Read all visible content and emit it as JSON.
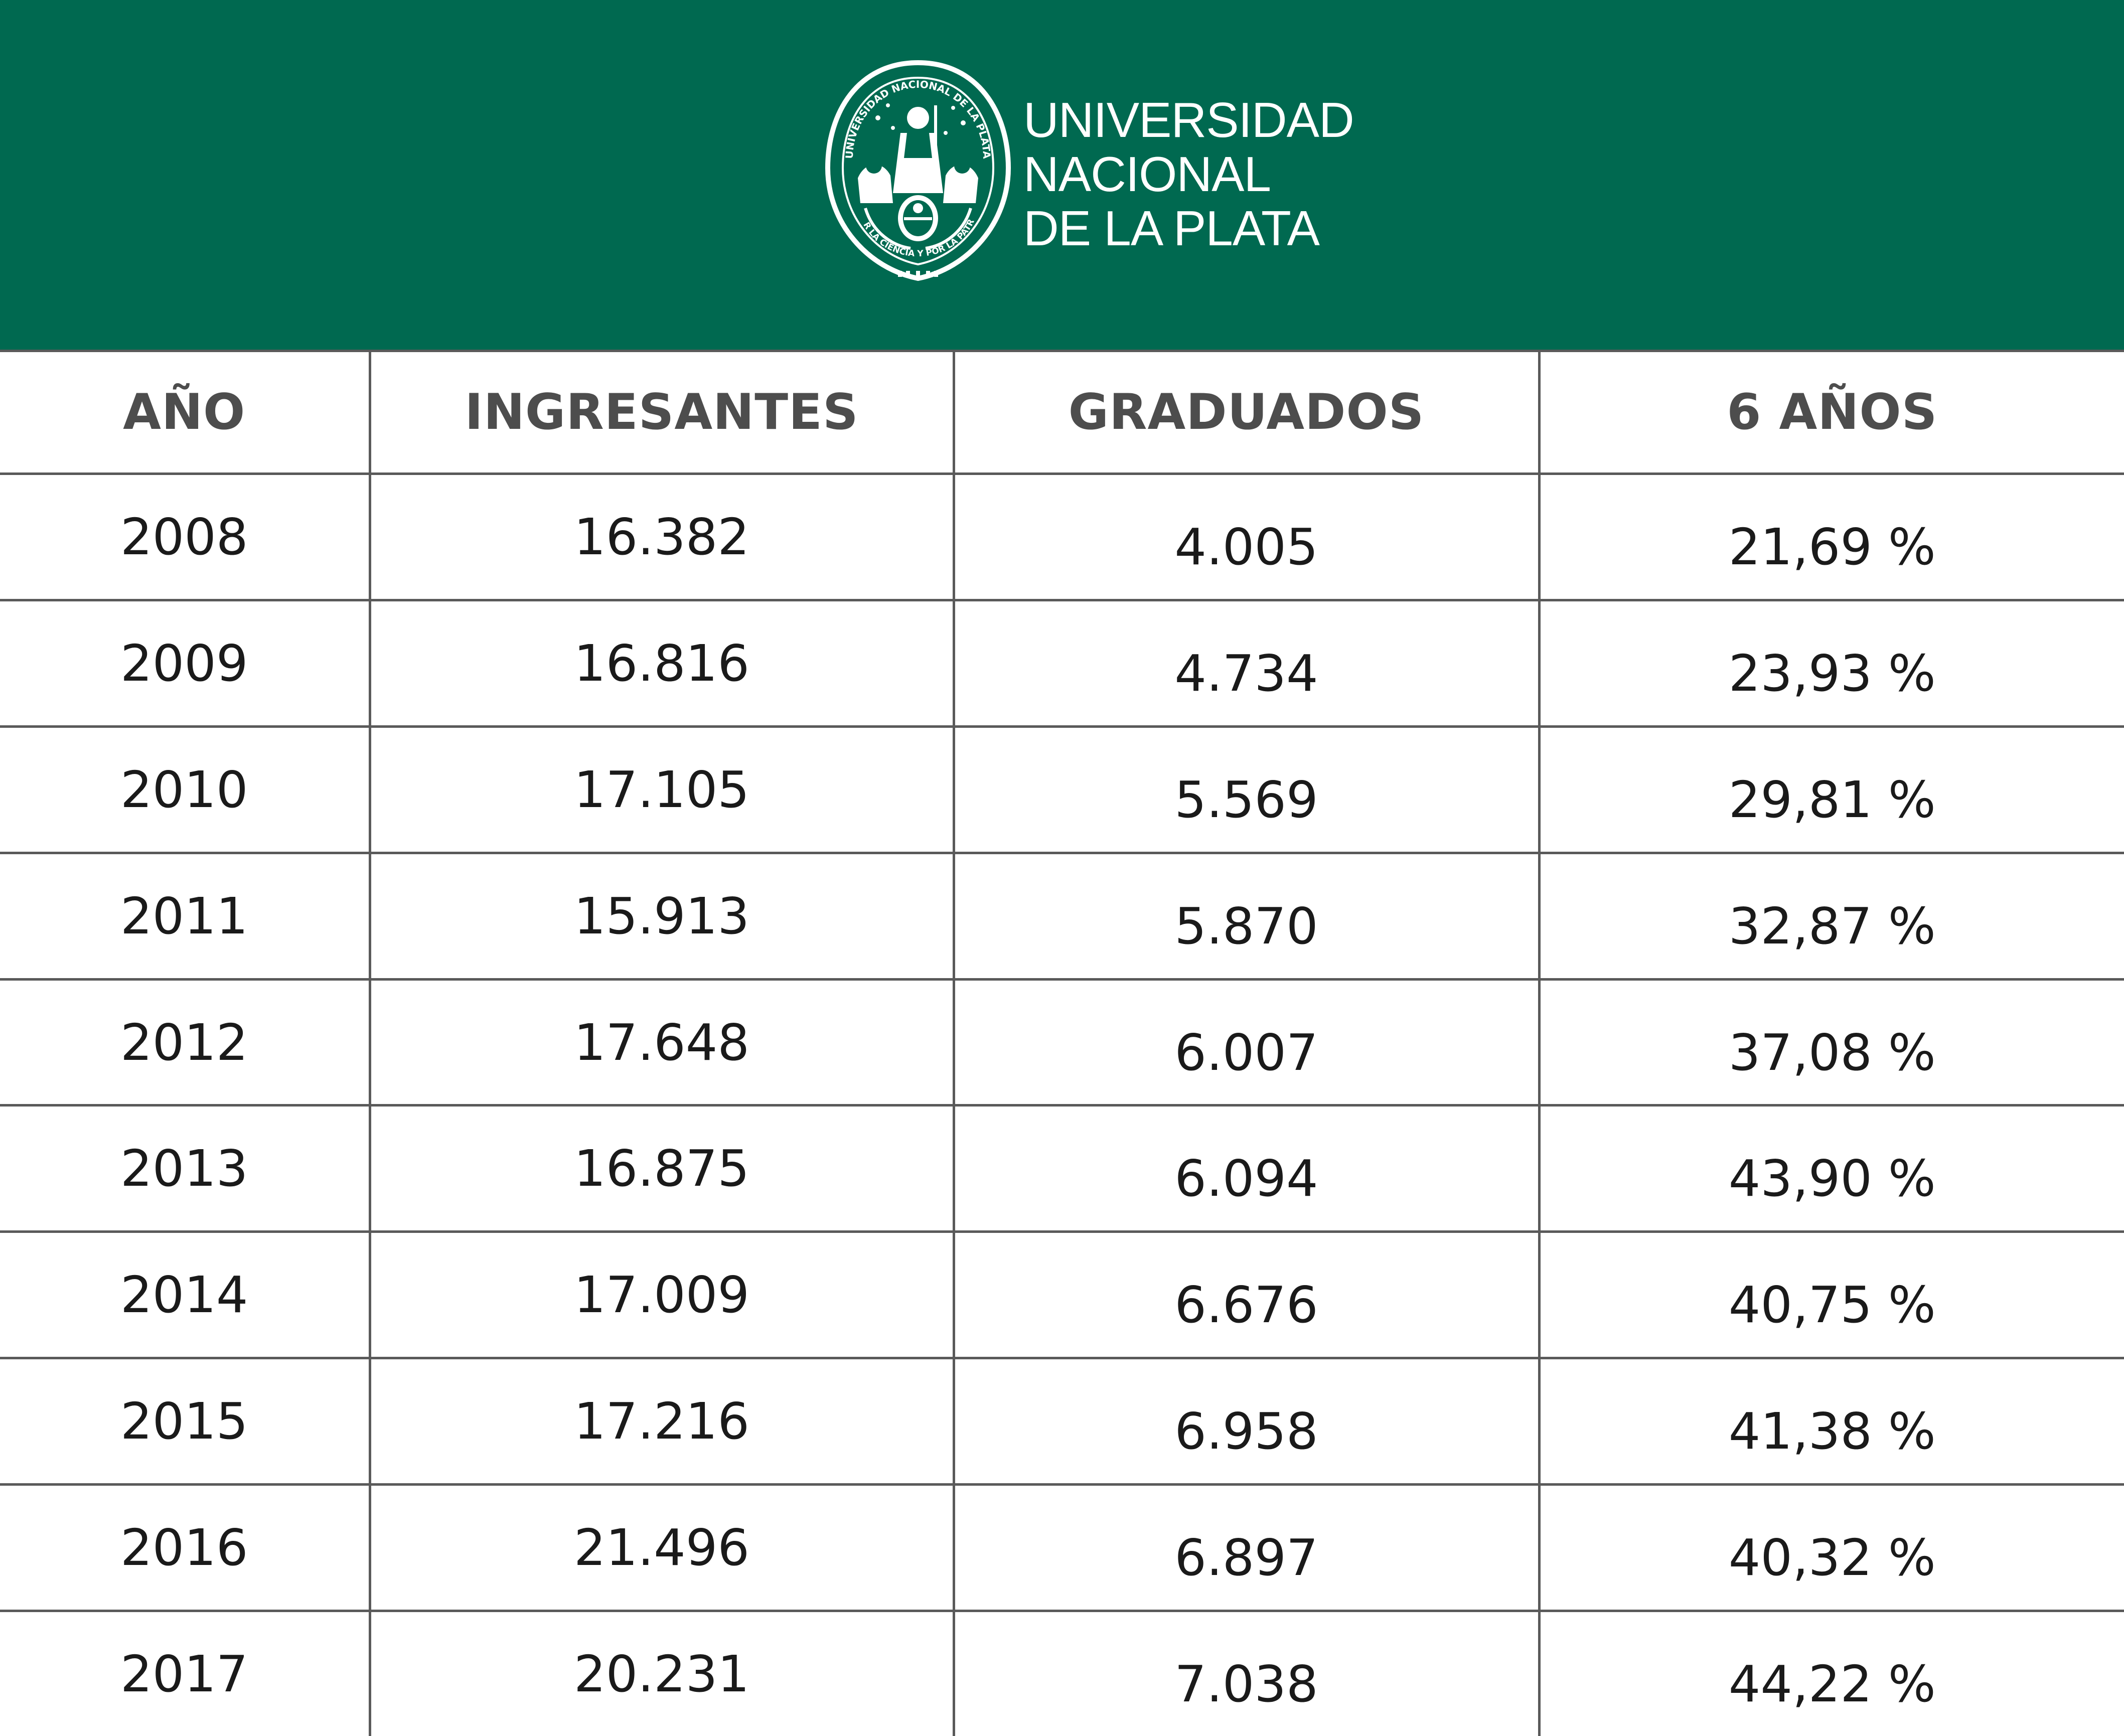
{
  "header": {
    "background_color": "#006950",
    "seal": {
      "top_text": "UNIVERSIDAD NACIONAL DE LA PLATA",
      "bottom_text": "POR LA CIENCIA Y POR LA PATRIA"
    },
    "wordmark": {
      "line1": "UNIVERSIDAD",
      "line2": "NACIONAL",
      "line3": "DE LA PLATA"
    }
  },
  "table": {
    "columns": [
      "AÑO",
      "INGRESANTES",
      "GRADUADOS",
      "6 AÑOS"
    ],
    "rows": [
      {
        "year": "2008",
        "ingresantes": "16.382",
        "graduados": "4.005",
        "pct": "21,69 %"
      },
      {
        "year": "2009",
        "ingresantes": "16.816",
        "graduados": "4.734",
        "pct": "23,93 %"
      },
      {
        "year": "2010",
        "ingresantes": "17.105",
        "graduados": "5.569",
        "pct": "29,81 %"
      },
      {
        "year": "2011",
        "ingresantes": "15.913",
        "graduados": "5.870",
        "pct": "32,87 %"
      },
      {
        "year": "2012",
        "ingresantes": "17.648",
        "graduados": "6.007",
        "pct": "37,08 %"
      },
      {
        "year": "2013",
        "ingresantes": "16.875",
        "graduados": "6.094",
        "pct": "43,90 %"
      },
      {
        "year": "2014",
        "ingresantes": "17.009",
        "graduados": "6.676",
        "pct": "40,75 %"
      },
      {
        "year": "2015",
        "ingresantes": "17.216",
        "graduados": "6.958",
        "pct": "41,38 %"
      },
      {
        "year": "2016",
        "ingresantes": "21.496",
        "graduados": "6.897",
        "pct": "40,32 %"
      },
      {
        "year": "2017",
        "ingresantes": "20.231",
        "graduados": "7.038",
        "pct": "44,22 %"
      }
    ]
  }
}
